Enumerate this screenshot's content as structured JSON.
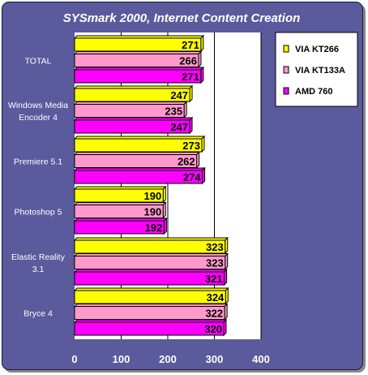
{
  "chart_data": {
    "type": "bar",
    "orientation": "horizontal",
    "title": "SYSmark 2000, Internet Content Creation",
    "categories": [
      "TOTAL",
      "Windows Media Encoder 4",
      "Premiere 5.1",
      "Photoshop 5",
      "Elastic Reality 3.1",
      "Bryce 4"
    ],
    "category_lines": [
      [
        "TOTAL"
      ],
      [
        "Windows Media",
        "Encoder 4"
      ],
      [
        "Premiere 5.1"
      ],
      [
        "Photoshop 5"
      ],
      [
        "Elastic Reality",
        "3.1"
      ],
      [
        "Bryce 4"
      ]
    ],
    "series": [
      {
        "name": "VIA KT266",
        "color": "#ffff00",
        "values": [
          271,
          247,
          273,
          190,
          323,
          324
        ]
      },
      {
        "name": "VIA KT133A",
        "color": "#ff99cc",
        "values": [
          266,
          235,
          262,
          190,
          323,
          322
        ]
      },
      {
        "name": "AMD 760",
        "color": "#ff00ff",
        "values": [
          271,
          247,
          274,
          192,
          321,
          320
        ]
      }
    ],
    "xlim": [
      0,
      400
    ],
    "xticks": [
      0,
      100,
      200,
      300,
      400
    ],
    "grid": true,
    "data_labels": true,
    "legend_position": "top-right",
    "colors": {
      "background": "#5a5a9c",
      "plot_area": "#ffffff",
      "title": "#ffffff",
      "tick_labels": "#ffffff",
      "bar_border": "#000000"
    }
  }
}
